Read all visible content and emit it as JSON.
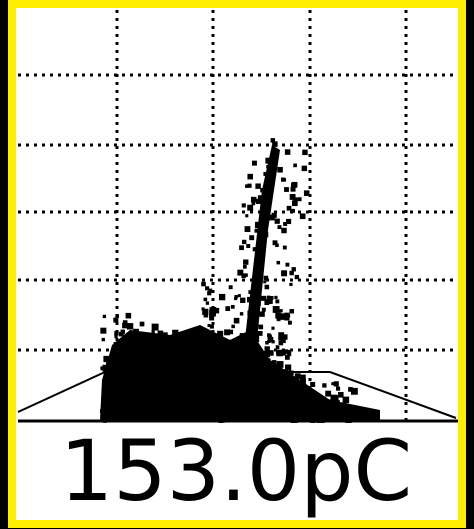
{
  "screen": {
    "reading": "153.0pC"
  }
}
